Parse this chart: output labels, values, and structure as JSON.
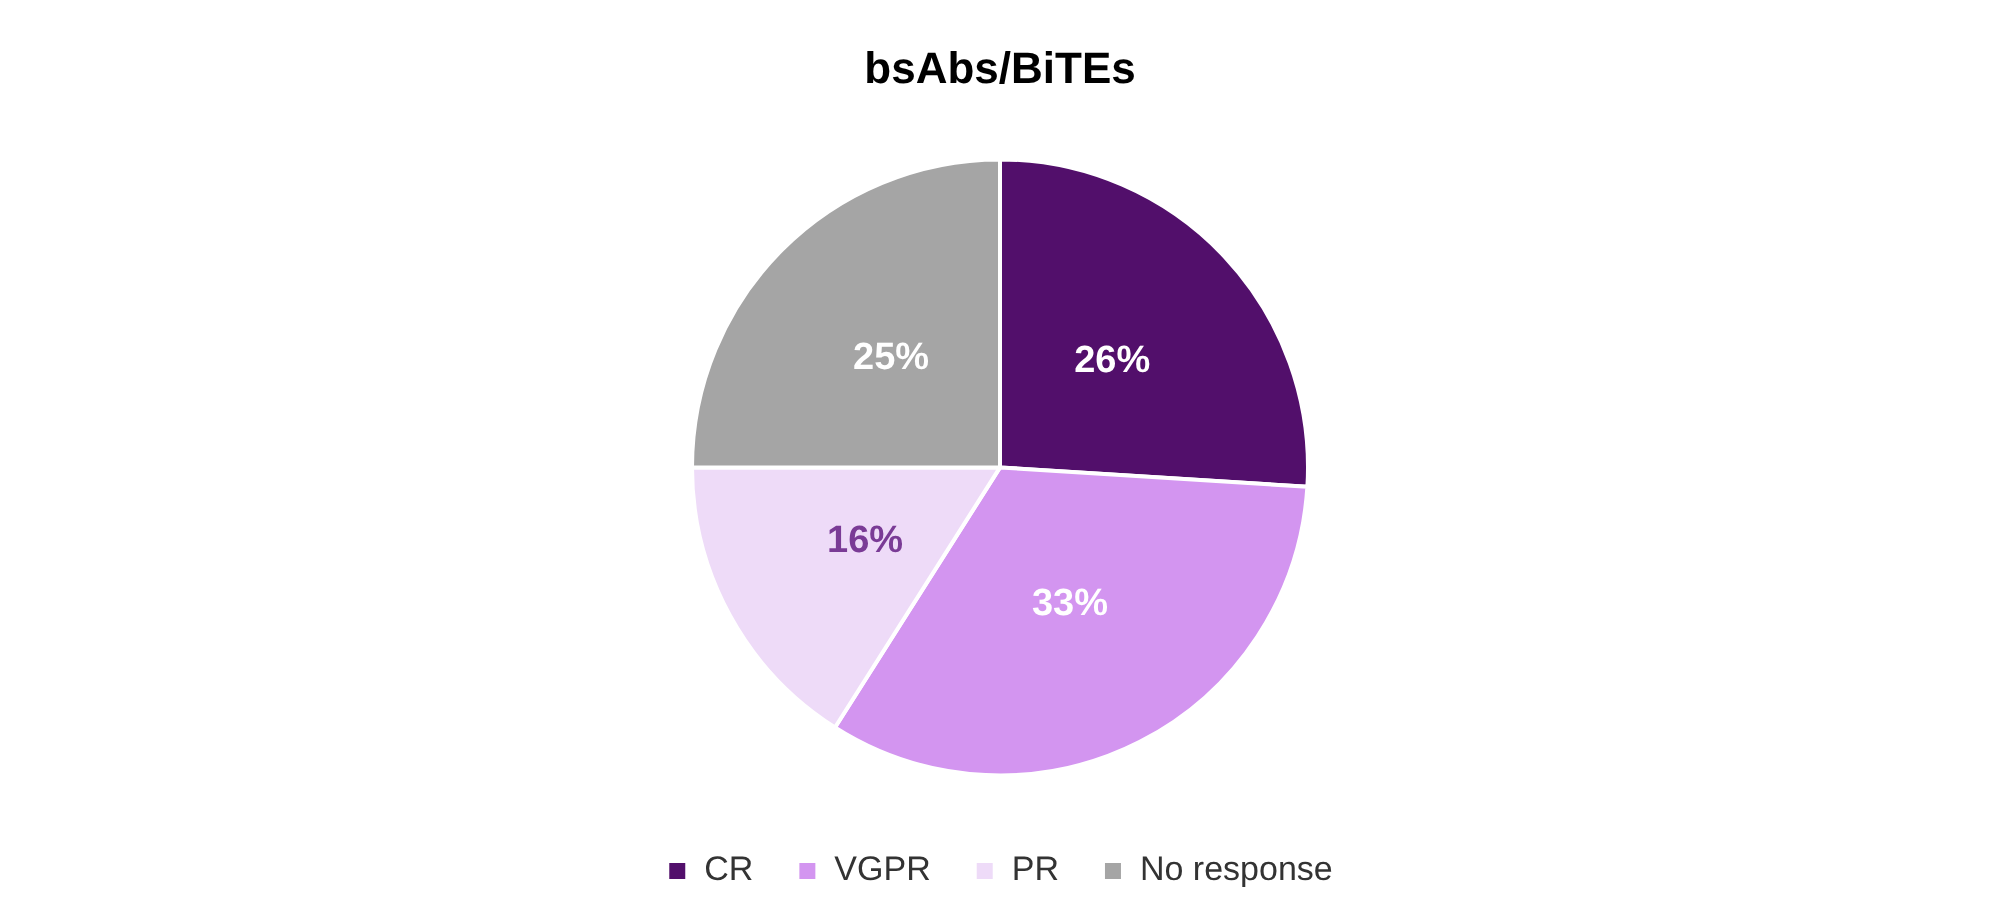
{
  "chart_data": {
    "type": "pie",
    "title": "bsAbs/BiTEs",
    "categories": [
      "CR",
      "VGPR",
      "PR",
      "No response"
    ],
    "values": [
      26,
      33,
      16,
      25
    ],
    "colors": [
      "#520f6b",
      "#d395f0",
      "#eedbf8",
      "#a5a5a5"
    ],
    "value_labels": [
      "26%",
      "33%",
      "16%",
      "25%"
    ],
    "legend": "bottom"
  }
}
